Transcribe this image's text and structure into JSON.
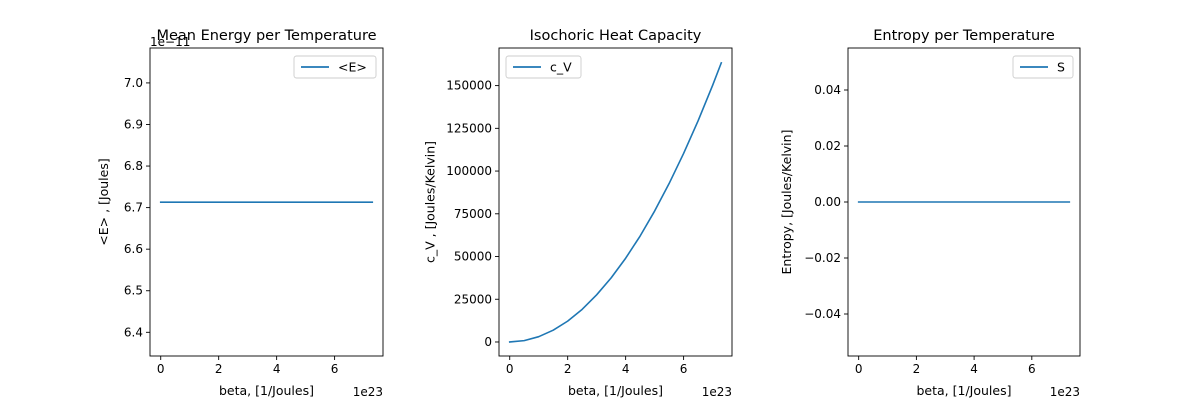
{
  "colors": {
    "line": "#1f77b4",
    "axes": "#000000",
    "background": "#ffffff"
  },
  "chart_data": [
    {
      "type": "line",
      "title": "Mean Energy per Temperature",
      "xlabel": "beta, [1/Joules]",
      "ylabel": "<E> , [Joules]",
      "x_offset_label": "1e23",
      "y_offset_label": "1e−11",
      "xlim": [
        -0.37,
        7.67
      ],
      "ylim": [
        6.343,
        7.084
      ],
      "xticks": [
        0,
        2,
        4,
        6
      ],
      "xtick_labels": [
        "0",
        "2",
        "4",
        "6"
      ],
      "yticks": [
        6.4,
        6.5,
        6.6,
        6.7,
        6.8,
        6.9,
        7.0
      ],
      "ytick_labels": [
        "6.4",
        "6.5",
        "6.6",
        "6.7",
        "6.8",
        "6.9",
        "7.0"
      ],
      "legend": {
        "position": "top-right",
        "entries": [
          "<E>"
        ]
      },
      "grid": false,
      "series": [
        {
          "name": "<E>",
          "x": [
            0,
            7.3
          ],
          "y": [
            6.713,
            6.713
          ]
        }
      ]
    },
    {
      "type": "line",
      "title": "Isochoric Heat Capacity",
      "xlabel": "beta, [1/Joules]",
      "ylabel": "c_V , [Joules/Kelvin]",
      "x_offset_label": "1e23",
      "y_offset_label": "",
      "xlim": [
        -0.37,
        7.67
      ],
      "ylim": [
        -8200,
        172000
      ],
      "xticks": [
        0,
        2,
        4,
        6
      ],
      "xtick_labels": [
        "0",
        "2",
        "4",
        "6"
      ],
      "yticks": [
        0,
        25000,
        50000,
        75000,
        100000,
        125000,
        150000
      ],
      "ytick_labels": [
        "0",
        "25000",
        "50000",
        "75000",
        "100000",
        "125000",
        "150000"
      ],
      "legend": {
        "position": "top-left",
        "entries": [
          "c_V"
        ]
      },
      "grid": false,
      "series": [
        {
          "name": "c_V",
          "x": [
            0,
            0.5,
            1,
            1.5,
            2,
            2.5,
            3,
            3.5,
            4,
            4.5,
            5,
            5.5,
            6,
            6.5,
            7,
            7.3
          ],
          "y": [
            0,
            800,
            3100,
            6900,
            12200,
            19100,
            27600,
            37500,
            49000,
            62000,
            76600,
            92700,
            110300,
            129400,
            150100,
            163300
          ]
        }
      ]
    },
    {
      "type": "line",
      "title": "Entropy per Temperature",
      "xlabel": "beta, [1/Joules]",
      "ylabel": "Entropy, [Joules/Kelvin]",
      "x_offset_label": "1e23",
      "y_offset_label": "",
      "xlim": [
        -0.37,
        7.67
      ],
      "ylim": [
        -0.055,
        0.055
      ],
      "xticks": [
        0,
        2,
        4,
        6
      ],
      "xtick_labels": [
        "0",
        "2",
        "4",
        "6"
      ],
      "yticks": [
        -0.04,
        -0.02,
        0,
        0.02,
        0.04
      ],
      "ytick_labels": [
        "−0.04",
        "−0.02",
        "0.00",
        "0.02",
        "0.04"
      ],
      "legend": {
        "position": "top-right",
        "entries": [
          "S"
        ]
      },
      "grid": false,
      "series": [
        {
          "name": "S",
          "x": [
            0,
            7.3
          ],
          "y": [
            0,
            0
          ]
        }
      ]
    }
  ]
}
